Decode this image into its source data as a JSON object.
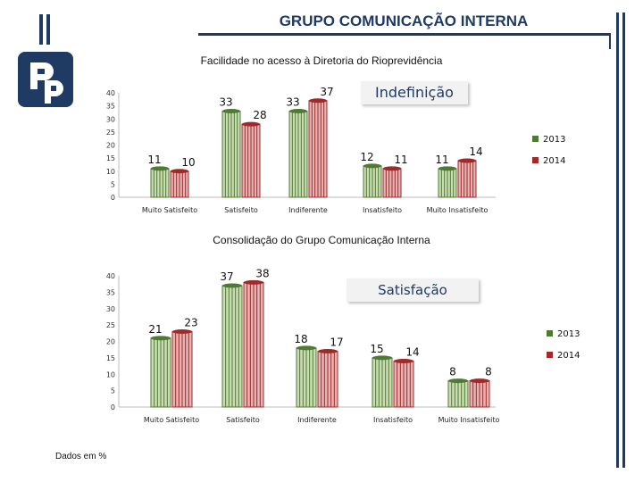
{
  "header": {
    "title": "GRUPO COMUNICAÇÃO INTERNA"
  },
  "logo": {
    "icon": "org-logo-icon",
    "color": "#1f3b63"
  },
  "colors": {
    "series_2013": "#4f7a33",
    "series_2014": "#9e2a2a",
    "title": "#1f3b63"
  },
  "footnote": "Dados em %",
  "chart_data": [
    {
      "type": "bar",
      "title": "Facilidade no acesso à Diretoria do Rioprevidência",
      "callout": "Indefinição",
      "categories": [
        "Muito Satisfeito",
        "Satisfeito",
        "Indiferente",
        "Insatisfeito",
        "Muito Insatisfeito"
      ],
      "series": [
        {
          "name": "2013",
          "values": [
            11,
            33,
            33,
            12,
            11
          ]
        },
        {
          "name": "2014",
          "values": [
            10,
            28,
            37,
            11,
            14
          ]
        }
      ],
      "ylim": [
        0,
        40
      ],
      "yticks": [
        0,
        5,
        10,
        15,
        20,
        25,
        30,
        35,
        40
      ],
      "legend": "right"
    },
    {
      "type": "bar",
      "title": "Consolidação do Grupo Comunicação Interna",
      "callout": "Satisfação",
      "categories": [
        "Muito Satisfeito",
        "Satisfeito",
        "Indiferente",
        "Insatisfeito",
        "Muito Insatisfeito"
      ],
      "series": [
        {
          "name": "2013",
          "values": [
            21,
            37,
            18,
            15,
            8
          ]
        },
        {
          "name": "2014",
          "values": [
            23,
            38,
            17,
            14,
            8
          ]
        }
      ],
      "ylim": [
        0,
        40
      ],
      "yticks": [
        0,
        5,
        10,
        15,
        20,
        25,
        30,
        35,
        40
      ],
      "legend": "right"
    }
  ]
}
